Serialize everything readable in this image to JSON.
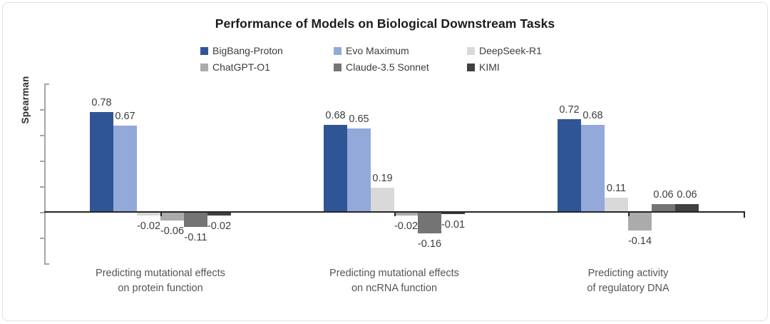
{
  "chart_data": {
    "type": "bar",
    "title": "Performance of Models on Biological Downstream Tasks",
    "ylabel": "Spearman",
    "xlabel": "",
    "ylim": [
      -0.4,
      1.0
    ],
    "ytick_step": 0.2,
    "ytick_labels_shown": false,
    "grid": false,
    "legend_position": "top",
    "legend_rows": [
      [
        "BigBang-Proton",
        "Evo Maximum",
        "DeepSeek-R1"
      ],
      [
        "ChatGPT-O1",
        "Claude-3.5 Sonnet",
        "KIMI"
      ]
    ],
    "categories": [
      [
        "Predicting mutational effects",
        "on protein function"
      ],
      [
        "Predicting mutational effects",
        "on ncRNA function"
      ],
      [
        "Predicting activity",
        "of regulatory DNA"
      ]
    ],
    "series": [
      {
        "name": "BigBang-Proton",
        "color": "#2F5597",
        "values": [
          0.78,
          0.68,
          0.72
        ]
      },
      {
        "name": "Evo Maximum",
        "color": "#93A9DA",
        "values": [
          0.67,
          0.65,
          0.68
        ]
      },
      {
        "name": "DeepSeek-R1",
        "color": "#D9D9D9",
        "values": [
          -0.02,
          0.19,
          0.11
        ]
      },
      {
        "name": "ChatGPT-O1",
        "color": "#ABABAB",
        "values": [
          -0.06,
          -0.02,
          -0.14
        ]
      },
      {
        "name": "Claude-3.5 Sonnet",
        "color": "#747474",
        "values": [
          -0.11,
          -0.16,
          0.06
        ]
      },
      {
        "name": "KIMI",
        "color": "#404040",
        "values": [
          -0.02,
          -0.01,
          0.06
        ]
      }
    ],
    "style": {
      "axis_color": "#262626",
      "tick_color": "#a6a6a6",
      "label_color": "#3d3d3d",
      "background": "#ffffff"
    }
  }
}
